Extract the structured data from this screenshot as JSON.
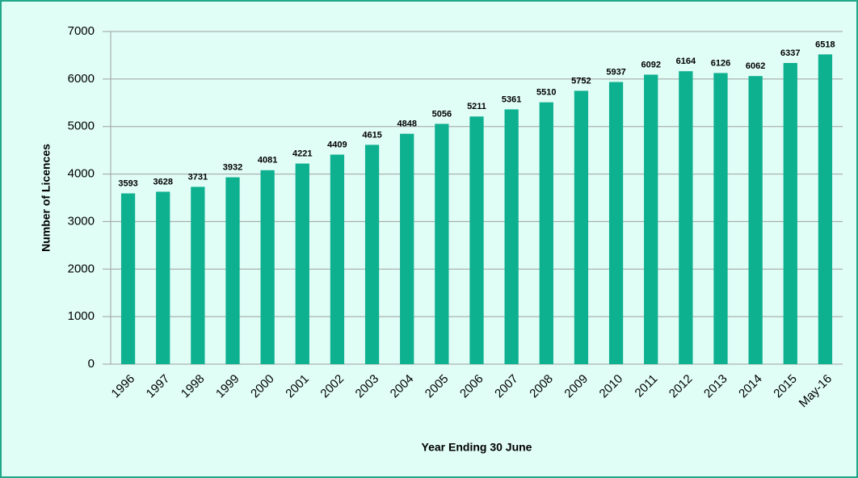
{
  "chart_data": {
    "type": "bar",
    "x_label": "Year Ending 30 June",
    "y_label": "Number of Licences",
    "categories": [
      "1996",
      "1997",
      "1998",
      "1999",
      "2000",
      "2001",
      "2002",
      "2003",
      "2004",
      "2005",
      "2006",
      "2007",
      "2008",
      "2009",
      "2010",
      "2011",
      "2012",
      "2013",
      "2014",
      "2015",
      "May-16"
    ],
    "values": [
      3593,
      3628,
      3731,
      3932,
      4081,
      4221,
      4409,
      4615,
      4848,
      5056,
      5211,
      5361,
      5510,
      5752,
      5937,
      6092,
      6164,
      6126,
      6062,
      6337,
      6518
    ],
    "color": "#0db08f",
    "ylim": [
      0,
      7000
    ],
    "yticks": [
      0,
      1000,
      2000,
      3000,
      4000,
      5000,
      6000,
      7000
    ],
    "grid": true
  }
}
